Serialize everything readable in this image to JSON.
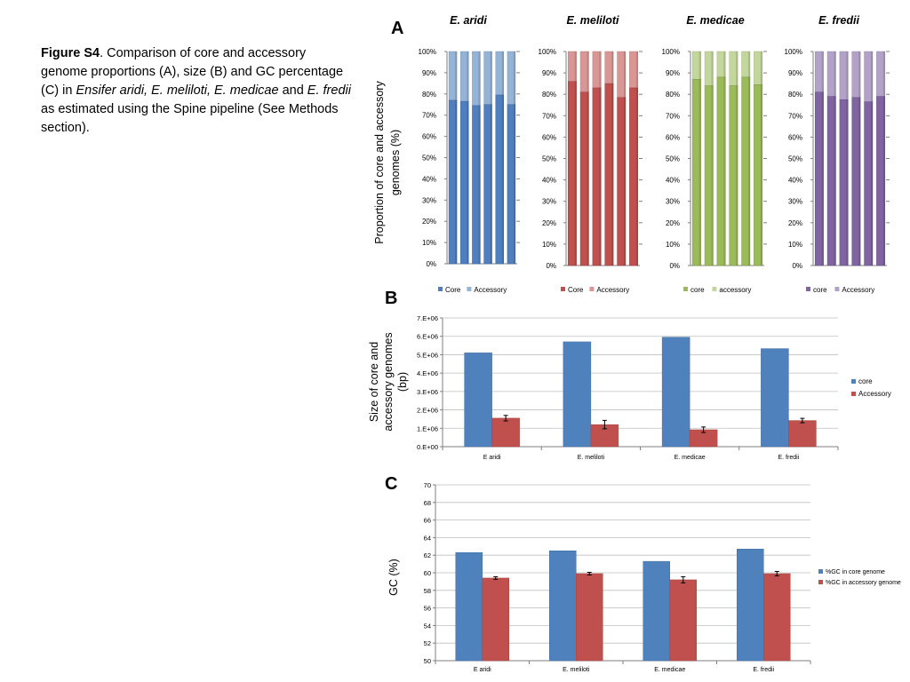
{
  "caption": {
    "label": "Figure S4",
    "part1": ". Comparison of core and accessory genome proportions (A), size (B) and GC percentage (C) in ",
    "species_italic": "Ensifer aridi, E. meliloti, E. medicae",
    "part2": " and ",
    "fredii_italic": "E. fredii",
    "part3": "  as estimated using the Spine pipeline (See Methods section)."
  },
  "colors": {
    "aridi_core": "#4F7FBF",
    "aridi_acc": "#95B3D7",
    "meliloti_core": "#C0504D",
    "meliloti_acc": "#DA9694",
    "medicae_core": "#9BBB59",
    "medicae_acc": "#C3D69B",
    "fredii_core": "#8064A2",
    "fredii_acc": "#B3A2C7",
    "blue": "#4F81BD",
    "red": "#C0504D",
    "grid": "#BFBFBF"
  },
  "chart_data": [
    {
      "panel": "A",
      "type": "bar",
      "stacked": true,
      "ylabel": "Proportion of core and accessory genomes (%)",
      "yticks": [
        "0%",
        "10%",
        "20%",
        "30%",
        "40%",
        "50%",
        "60%",
        "70%",
        "80%",
        "90%",
        "100%"
      ],
      "ylim": [
        0,
        100
      ],
      "subcharts": [
        {
          "title": "E. aridi",
          "core_values": [
            77,
            76.5,
            74.5,
            75,
            79.5,
            75
          ],
          "legend": [
            "Core",
            "Accessory"
          ],
          "colors": [
            "aridi_core",
            "aridi_acc"
          ]
        },
        {
          "title": "E. meliloti",
          "core_values": [
            86,
            81,
            83,
            85,
            78.5,
            83
          ],
          "legend": [
            "Core",
            "Accessory"
          ],
          "colors": [
            "meliloti_core",
            "meliloti_acc"
          ]
        },
        {
          "title": "E. medicae",
          "core_values": [
            87,
            84,
            88,
            84,
            88,
            84.5
          ],
          "legend": [
            "core",
            "accessory"
          ],
          "colors": [
            "medicae_core",
            "medicae_acc"
          ]
        },
        {
          "title": "E. fredii",
          "core_values": [
            81,
            79,
            77.5,
            78.5,
            76.5,
            79
          ],
          "legend": [
            "core",
            "Accessory"
          ],
          "colors": [
            "fredii_core",
            "fredii_acc"
          ]
        }
      ]
    },
    {
      "panel": "B",
      "type": "bar",
      "ylabel": "Size of core and accessory genomes (bp)",
      "categories": [
        "E aridi",
        "E. meliloti",
        "E. medicae",
        "E. fredii"
      ],
      "yticks": [
        "0.E+00",
        "1.E+06",
        "2.E+06",
        "3.E+06",
        "4.E+06",
        "5.E+06",
        "6.E+06",
        "7.E+06"
      ],
      "ylim": [
        0,
        7000000
      ],
      "series": [
        {
          "name": "core",
          "values": [
            5100000,
            5700000,
            5950000,
            5330000
          ],
          "errors": [
            0,
            0,
            0,
            0
          ]
        },
        {
          "name": "Accessory",
          "values": [
            1550000,
            1200000,
            920000,
            1420000
          ],
          "errors": [
            150000,
            230000,
            150000,
            120000
          ]
        }
      ]
    },
    {
      "panel": "C",
      "type": "bar",
      "ylabel": "GC (%)",
      "categories": [
        "E aridi",
        "E. meliloti",
        "E. medicae",
        "E. fredii"
      ],
      "yticks": [
        "50",
        "52",
        "54",
        "56",
        "58",
        "60",
        "62",
        "64",
        "66",
        "68",
        "70"
      ],
      "ylim": [
        50,
        70
      ],
      "series": [
        {
          "name": "%GC in core genome",
          "values": [
            62.3,
            62.5,
            61.3,
            62.7
          ],
          "errors": [
            0,
            0,
            0,
            0
          ]
        },
        {
          "name": "%GC in accessory genome",
          "values": [
            59.4,
            59.9,
            59.2,
            59.9
          ],
          "errors": [
            0.15,
            0.15,
            0.35,
            0.25
          ]
        }
      ]
    }
  ]
}
